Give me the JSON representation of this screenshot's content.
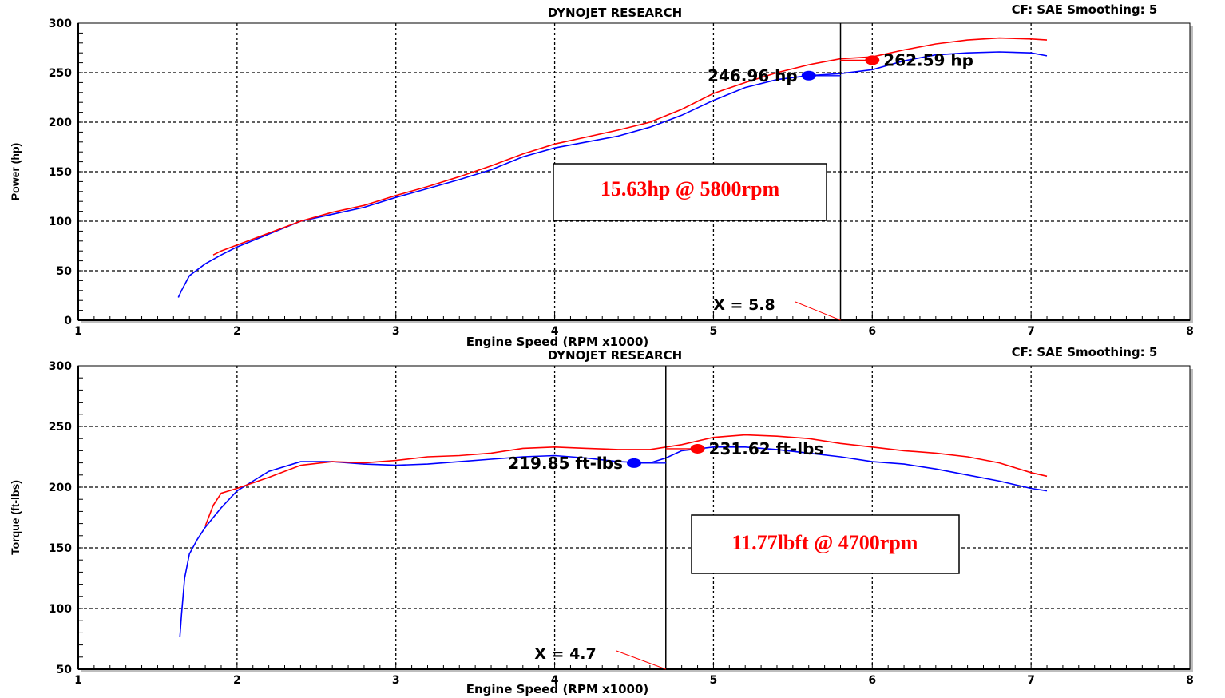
{
  "colors": {
    "baseline": "#0000ff",
    "modified": "#ff0000",
    "grid": "#000000",
    "note_text": "#ff0000"
  },
  "chart_data": [
    {
      "type": "line",
      "header": "DYNOJET RESEARCH",
      "corner_info": "CF: SAE  Smoothing: 5",
      "xlabel": "Engine Speed (RPM x1000)",
      "ylabel": "Power (hp)",
      "xlim": [
        1,
        8
      ],
      "ylim": [
        0,
        300
      ],
      "xticks": [
        1,
        2,
        3,
        4,
        5,
        6,
        7,
        8
      ],
      "yticks": [
        0,
        50,
        100,
        150,
        200,
        250,
        300
      ],
      "grid": true,
      "cursor_x": 5.8,
      "cursor_label": "X = 5.8",
      "note": "15.63hp @ 5800rpm",
      "series": [
        {
          "color": "blue",
          "marker": {
            "x": 5.6,
            "y": 246.96,
            "label": "246.96 hp"
          },
          "x": [
            1.63,
            1.65,
            1.7,
            1.8,
            1.9,
            2.0,
            2.2,
            2.4,
            2.6,
            2.8,
            3.0,
            3.2,
            3.4,
            3.6,
            3.8,
            4.0,
            4.2,
            4.4,
            4.6,
            4.8,
            5.0,
            5.2,
            5.4,
            5.6,
            5.8,
            6.0,
            6.2,
            6.4,
            6.6,
            6.8,
            7.0,
            7.1
          ],
          "y": [
            23,
            30,
            45,
            57,
            66,
            74,
            87,
            100,
            107,
            114,
            124,
            133,
            142,
            152,
            165,
            174,
            180,
            186,
            195,
            207,
            222,
            235,
            243,
            247,
            249,
            253,
            262,
            268,
            270,
            271,
            270,
            267
          ]
        },
        {
          "color": "red",
          "marker": {
            "x": 6.0,
            "y": 262.59,
            "label": "262.59 hp"
          },
          "x": [
            1.85,
            1.9,
            2.0,
            2.2,
            2.4,
            2.6,
            2.8,
            3.0,
            3.2,
            3.4,
            3.6,
            3.8,
            4.0,
            4.2,
            4.4,
            4.6,
            4.8,
            5.0,
            5.2,
            5.4,
            5.6,
            5.8,
            6.0,
            6.2,
            6.4,
            6.6,
            6.8,
            7.0,
            7.1
          ],
          "y": [
            66,
            70,
            76,
            88,
            100,
            109,
            116,
            126,
            135,
            145,
            156,
            168,
            178,
            185,
            192,
            200,
            213,
            229,
            240,
            250,
            258,
            264,
            266,
            273,
            279,
            283,
            285,
            284,
            283
          ]
        }
      ]
    },
    {
      "type": "line",
      "header": "DYNOJET RESEARCH",
      "corner_info": "CF: SAE  Smoothing: 5",
      "xlabel": "Engine Speed (RPM x1000)",
      "ylabel": "Torque (ft-lbs)",
      "xlim": [
        1,
        8
      ],
      "ylim": [
        50,
        300
      ],
      "xticks": [
        1,
        2,
        3,
        4,
        5,
        6,
        7,
        8
      ],
      "yticks": [
        50,
        100,
        150,
        200,
        250,
        300
      ],
      "grid": true,
      "cursor_x": 4.7,
      "cursor_label": "X = 4.7",
      "note": "11.77lbft @ 4700rpm",
      "series": [
        {
          "color": "blue",
          "marker": {
            "x": 4.5,
            "y": 219.85,
            "label": "219.85 ft-lbs"
          },
          "x": [
            1.64,
            1.65,
            1.67,
            1.7,
            1.75,
            1.8,
            1.9,
            2.0,
            2.2,
            2.4,
            2.6,
            2.8,
            3.0,
            3.2,
            3.4,
            3.6,
            3.8,
            4.0,
            4.2,
            4.4,
            4.6,
            4.7,
            4.8,
            5.0,
            5.2,
            5.4,
            5.6,
            5.8,
            6.0,
            6.2,
            6.4,
            6.6,
            6.8,
            7.0,
            7.1
          ],
          "y": [
            77,
            95,
            125,
            145,
            157,
            167,
            183,
            197,
            213,
            221,
            221,
            219,
            218,
            219,
            221,
            223,
            225,
            226,
            224,
            221,
            220,
            224,
            230,
            233,
            233,
            231,
            228,
            225,
            221,
            219,
            215,
            210,
            205,
            199,
            197
          ]
        },
        {
          "color": "red",
          "marker": {
            "x": 4.9,
            "y": 231.62,
            "label": "231.62 ft-lbs"
          },
          "x": [
            1.8,
            1.85,
            1.9,
            2.0,
            2.2,
            2.4,
            2.6,
            2.8,
            3.0,
            3.2,
            3.4,
            3.6,
            3.8,
            4.0,
            4.2,
            4.4,
            4.6,
            4.8,
            5.0,
            5.2,
            5.4,
            5.6,
            5.8,
            6.0,
            6.2,
            6.4,
            6.6,
            6.8,
            7.0,
            7.1
          ],
          "y": [
            168,
            185,
            195,
            199,
            208,
            218,
            221,
            220,
            222,
            225,
            226,
            228,
            232,
            233,
            232,
            231,
            231,
            235,
            241,
            243,
            242,
            240,
            236,
            233,
            230,
            228,
            225,
            220,
            212,
            209
          ]
        }
      ]
    }
  ]
}
